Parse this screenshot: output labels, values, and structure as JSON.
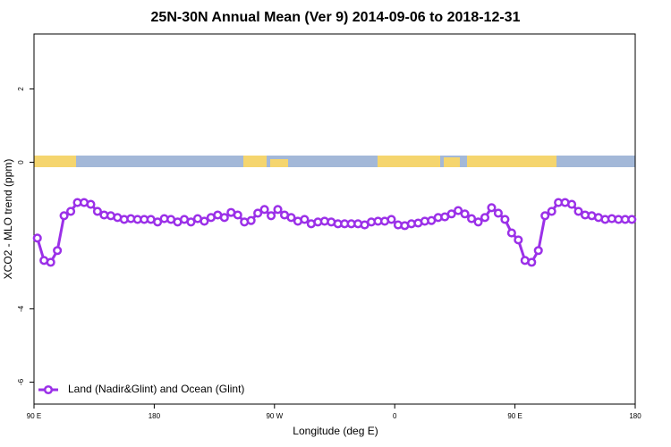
{
  "chart_data": {
    "type": "line",
    "title": "25N-30N Annual Mean (Ver 9)   2014-09-06 to 2018-12-31",
    "xlabel": "Longitude (deg E)",
    "ylabel": "XCO2 - MLO trend (ppm)",
    "xlim": [
      90,
      540
    ],
    "ylim": [
      -6.6,
      3.5
    ],
    "xticks": [
      {
        "value": 90,
        "label": "90 E"
      },
      180,
      {
        "value": 270,
        "label": "90 W"
      },
      {
        "value": 360,
        "label": "0"
      },
      {
        "value": 450,
        "label": "90 E"
      },
      {
        "value": 540,
        "label": "180"
      }
    ],
    "yticks": [
      -6,
      -4,
      0,
      2
    ],
    "legend": "bottomleft",
    "series": [
      {
        "name": "Land (Nadir&Glint) and Ocean (Glint)",
        "color": "#9b30e8",
        "x": [
          92.5,
          97.5,
          102.5,
          107.5,
          112.5,
          117.5,
          122.5,
          127.5,
          132.5,
          137.5,
          142.5,
          147.5,
          152.5,
          157.5,
          162.5,
          167.5,
          172.5,
          177.5,
          182.5,
          187.5,
          192.5,
          197.5,
          202.5,
          207.5,
          212.5,
          217.5,
          222.5,
          227.5,
          232.5,
          237.5,
          242.5,
          247.5,
          252.5,
          257.5,
          262.5,
          267.5,
          272.5,
          277.5,
          282.5,
          287.5,
          292.5,
          297.5,
          302.5,
          307.5,
          312.5,
          317.5,
          322.5,
          327.5,
          332.5,
          337.5,
          342.5,
          347.5,
          352.5,
          357.5,
          362.5,
          367.5,
          372.5,
          377.5,
          382.5,
          387.5,
          392.5,
          397.5,
          402.5,
          407.5,
          412.5,
          417.5,
          422.5,
          427.5,
          432.5,
          437.5,
          442.5,
          447.5,
          452.5,
          457.5,
          462.5,
          467.5,
          472.5,
          477.5,
          482.5,
          487.5,
          492.5,
          497.5,
          502.5,
          507.5,
          512.5,
          517.5,
          522.5,
          527.5,
          532.5,
          537.5
        ],
        "values": [
          -2.07,
          -2.68,
          -2.73,
          -2.41,
          -1.46,
          -1.34,
          -1.1,
          -1.1,
          -1.15,
          -1.34,
          -1.44,
          -1.46,
          -1.51,
          -1.56,
          -1.54,
          -1.56,
          -1.56,
          -1.56,
          -1.63,
          -1.54,
          -1.56,
          -1.63,
          -1.56,
          -1.63,
          -1.54,
          -1.61,
          -1.51,
          -1.44,
          -1.51,
          -1.37,
          -1.44,
          -1.63,
          -1.59,
          -1.39,
          -1.29,
          -1.46,
          -1.29,
          -1.44,
          -1.51,
          -1.61,
          -1.56,
          -1.68,
          -1.63,
          -1.61,
          -1.63,
          -1.68,
          -1.68,
          -1.68,
          -1.68,
          -1.71,
          -1.63,
          -1.61,
          -1.61,
          -1.56,
          -1.71,
          -1.73,
          -1.68,
          -1.66,
          -1.61,
          -1.59,
          -1.51,
          -1.49,
          -1.41,
          -1.32,
          -1.41,
          -1.54,
          -1.63,
          -1.51,
          -1.24,
          -1.39,
          -1.56,
          -1.93,
          -2.12,
          -2.68,
          -2.73,
          -2.41,
          -1.46,
          -1.34,
          -1.1,
          -1.1,
          -1.15,
          -1.34,
          -1.44,
          -1.46,
          -1.51,
          -1.56,
          -1.54,
          -1.56,
          -1.56,
          -1.56
        ]
      }
    ]
  }
}
